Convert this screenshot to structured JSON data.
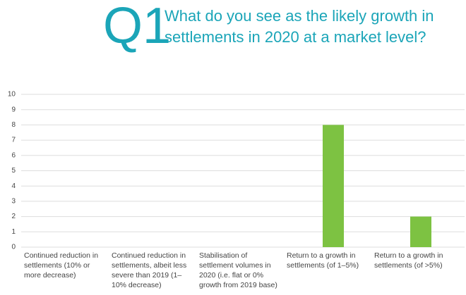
{
  "chart_data": {
    "type": "bar",
    "question_number": "Q1",
    "title": [
      "What do you see as the likely growth in",
      "settlements in 2020 at a market level?"
    ],
    "categories": [
      "Continued reduction in settlements (10% or more decrease)",
      "Continued reduction in settlements, albeit less severe than 2019 (1–10% decrease)",
      "Stabilisation of settlement volumes in 2020 (i.e. flat or 0% growth from 2019 base)",
      "Return to a growth in settlements (of 1–5%)",
      "Return to a growth in settlements (of >5%)"
    ],
    "values": [
      0,
      0,
      0,
      8,
      2
    ],
    "color": "#7dc242",
    "ylim": [
      0,
      10
    ],
    "yticks": [
      0,
      1,
      2,
      3,
      4,
      5,
      6,
      7,
      8,
      9,
      10
    ],
    "grid": true
  }
}
